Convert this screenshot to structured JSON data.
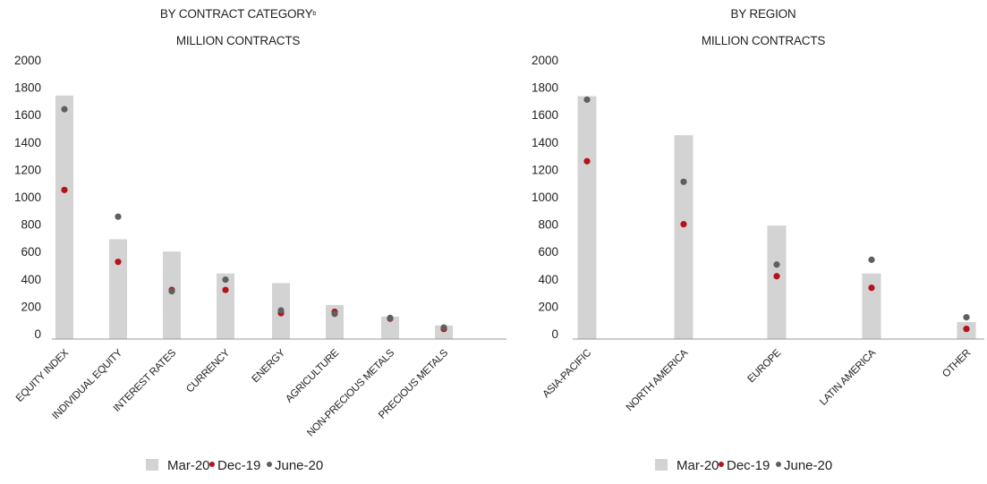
{
  "colors": {
    "bar": "#d3d3d3",
    "dec": "#b5121b",
    "june": "#5f5f5f",
    "axis": "#999999",
    "text": "#222222"
  },
  "legend": {
    "bar_label": "Mar-20",
    "dec_label": "Dec-19",
    "june_label": "June-20"
  },
  "chart_data": [
    {
      "type": "bar",
      "title": "BY CONTRACT CATEGORY",
      "title_superscript": "b",
      "subtitle": "MILLION CONTRACTS",
      "ylim": [
        0,
        2000
      ],
      "yticks": [
        0,
        200,
        400,
        600,
        800,
        1000,
        1200,
        1400,
        1600,
        1800,
        2000
      ],
      "grid": false,
      "legend_position": "bottom",
      "categories": [
        "EQUITY INDEX",
        "INDIVIDUAL EQUITY",
        "INTEREST RATES",
        "CURRENCY",
        "ENERGY",
        "AGRICULTURE",
        "NON-PRECIOUS METALS",
        "PRECIOUS METALS"
      ],
      "series": [
        {
          "name": "Mar-20",
          "kind": "bar",
          "values": [
            1740,
            690,
            600,
            440,
            370,
            210,
            125,
            60
          ]
        },
        {
          "name": "Dec-19",
          "kind": "dot",
          "values": [
            1050,
            525,
            320,
            320,
            150,
            160,
            110,
            35
          ]
        },
        {
          "name": "June-20",
          "kind": "dot",
          "values": [
            1640,
            855,
            310,
            395,
            170,
            145,
            115,
            45
          ]
        }
      ]
    },
    {
      "type": "bar",
      "title": "BY REGION",
      "subtitle": "MILLION CONTRACTS",
      "ylim": [
        0,
        2000
      ],
      "yticks": [
        0,
        200,
        400,
        600,
        800,
        1000,
        1200,
        1400,
        1600,
        1800,
        2000
      ],
      "grid": false,
      "legend_position": "bottom",
      "categories": [
        "ASIA-PACIFIC",
        "NORTH AMERICA",
        "EUROPE",
        "LATIN AMERICA",
        "OTHER"
      ],
      "series": [
        {
          "name": "Mar-20",
          "kind": "bar",
          "values": [
            1735,
            1450,
            790,
            440,
            85
          ]
        },
        {
          "name": "Dec-19",
          "kind": "dot",
          "values": [
            1260,
            800,
            420,
            335,
            35
          ]
        },
        {
          "name": "June-20",
          "kind": "dot",
          "values": [
            1710,
            1110,
            505,
            540,
            120
          ]
        }
      ]
    }
  ]
}
